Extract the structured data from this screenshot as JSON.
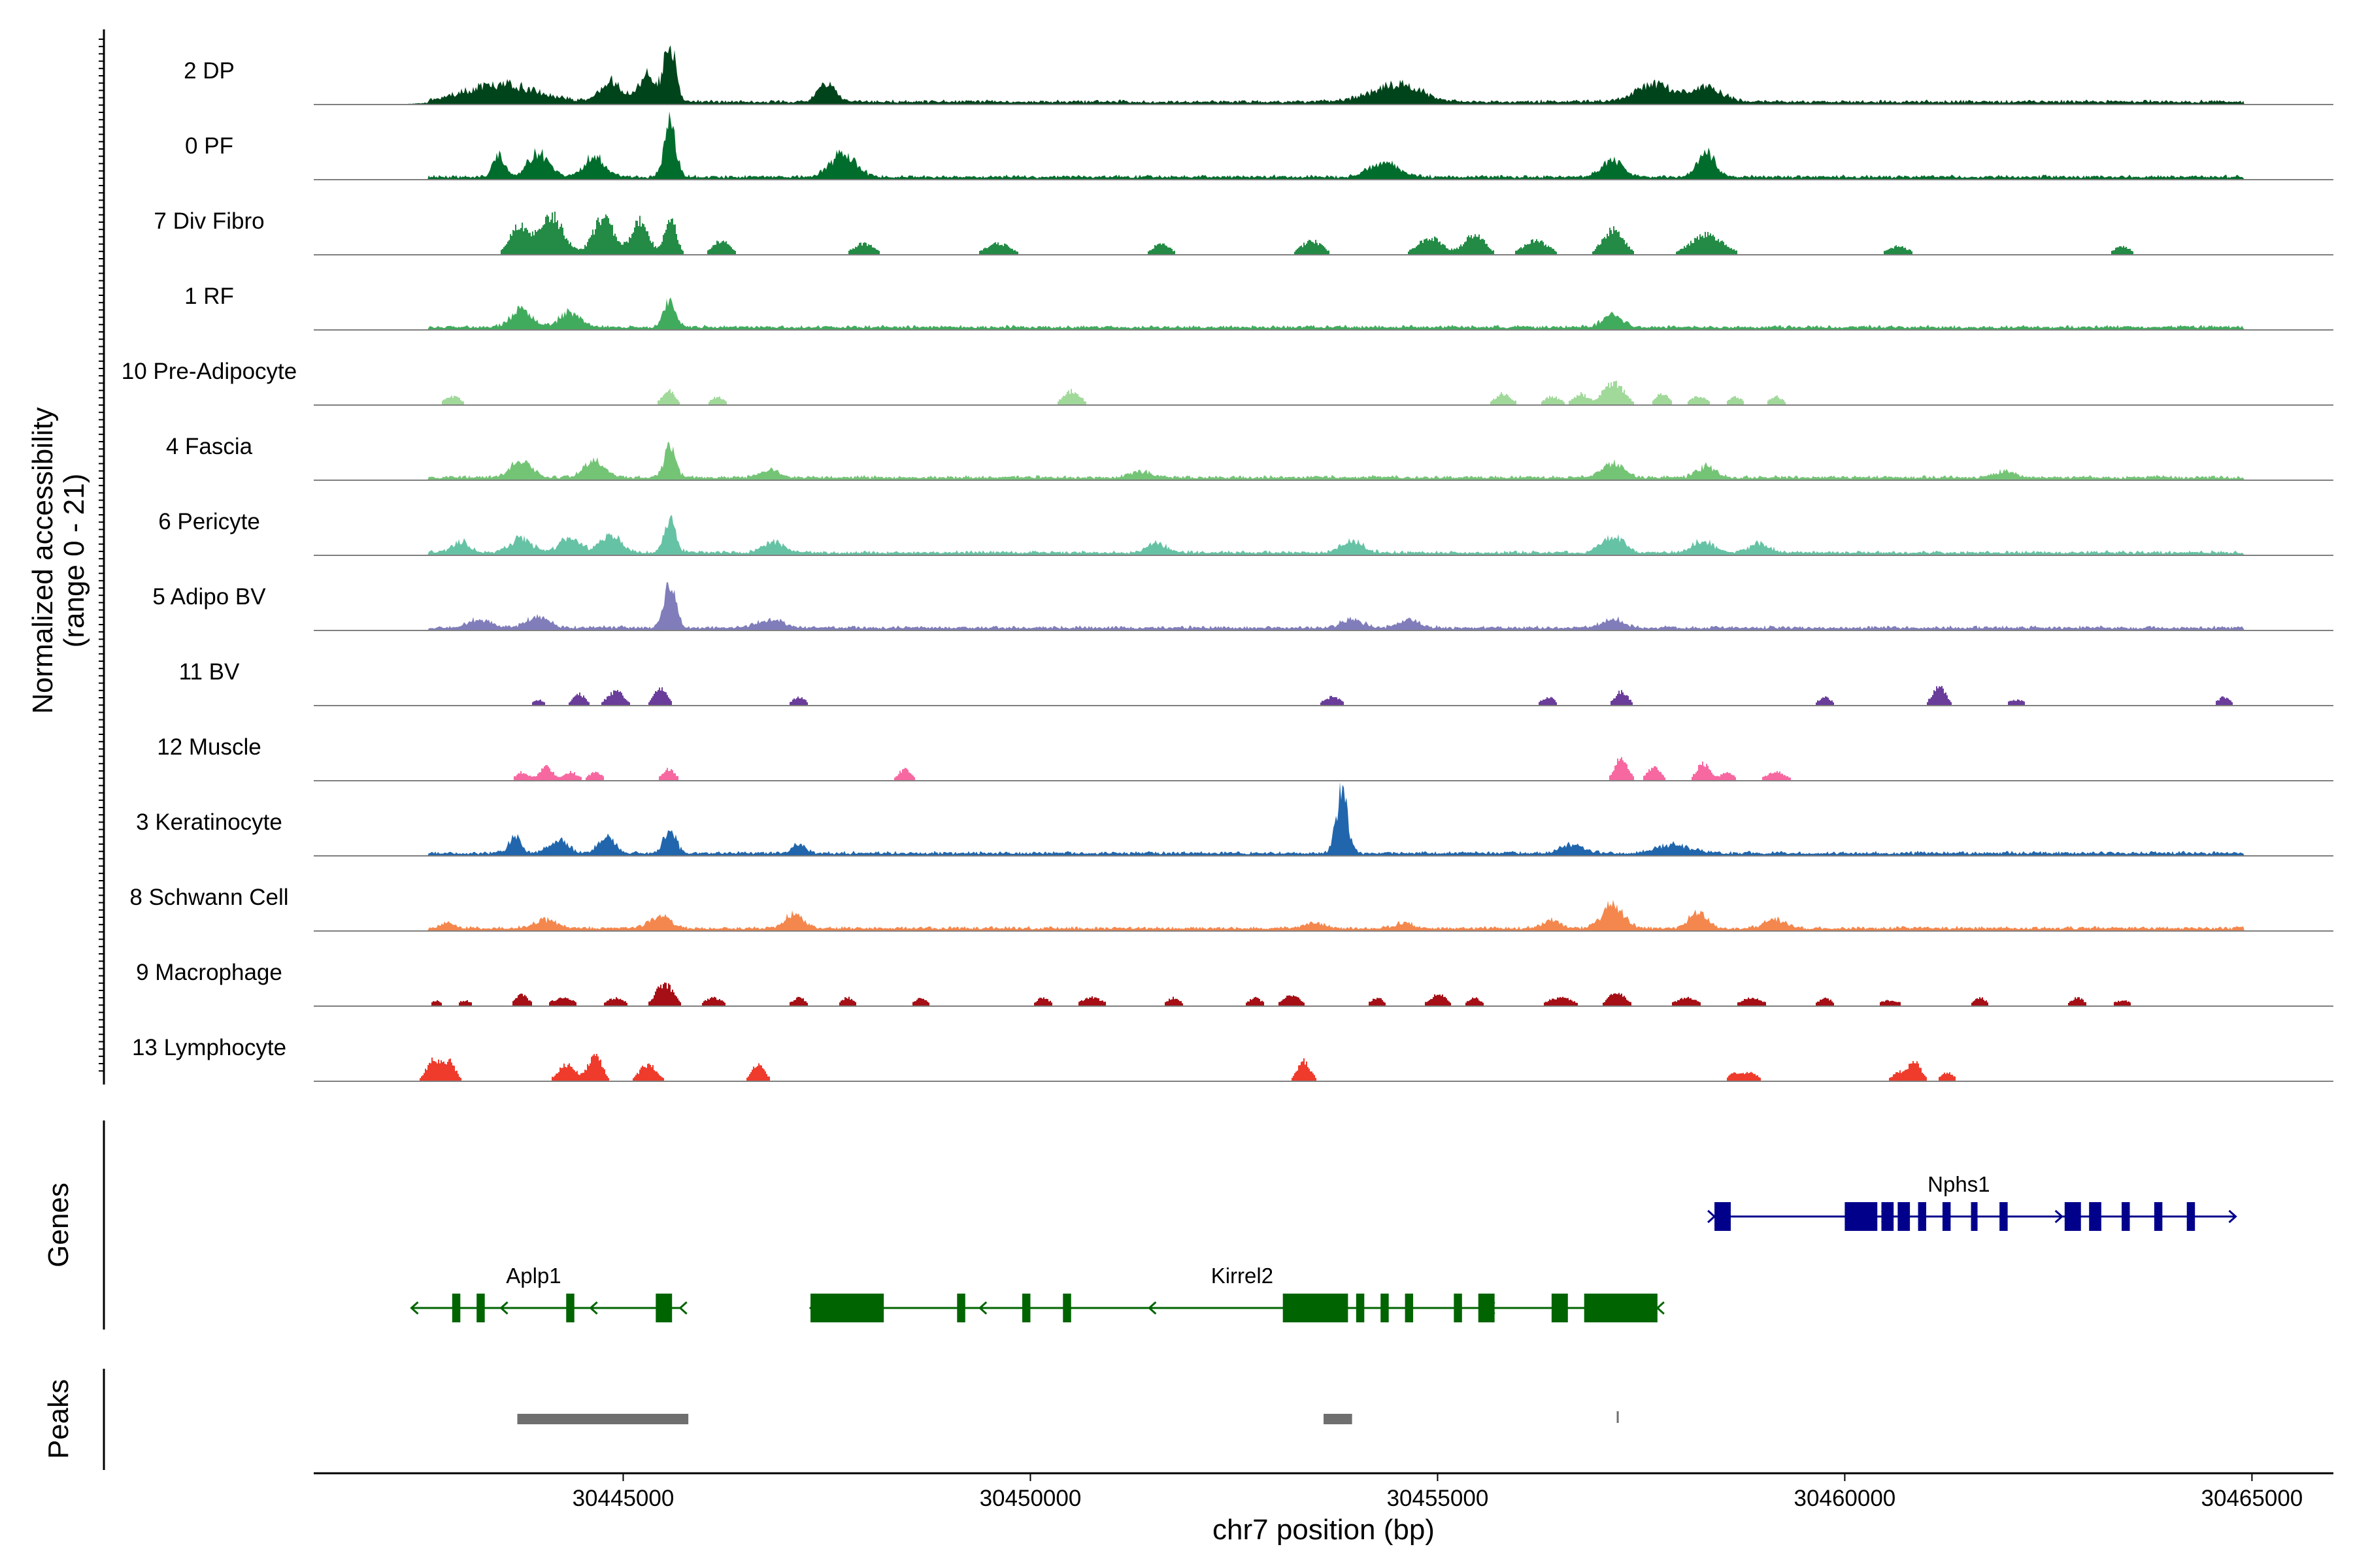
{
  "chart_data": {
    "type": "area",
    "ylabel_line1": "Normalized accessibility",
    "ylabel_line2": "(range 0 - 21)",
    "y_range": [
      0,
      21
    ],
    "genes_label": "Genes",
    "peaks_label": "Peaks",
    "xlabel": "chr7 position (bp)",
    "xlim": [
      30441200,
      30466000
    ],
    "x_ticks": [
      30445000,
      30450000,
      30455000,
      30460000,
      30465000
    ],
    "x_tick_labels": [
      "30445000",
      "30450000",
      "30455000",
      "30460000",
      "30465000"
    ],
    "tracks": [
      {
        "label": "2 DP",
        "color": "#00441b",
        "style": "dense",
        "peaks": [
          [
            30442700,
            30444300,
            6
          ],
          [
            30444700,
            30445000,
            7
          ],
          [
            30445200,
            30445400,
            10
          ],
          [
            30445550,
            30445600,
            21
          ],
          [
            30447600,
            30447400,
            6
          ],
          [
            30455000,
            30454000,
            6
          ],
          [
            30457300,
            30458000,
            6
          ],
          [
            30458600,
            30458000,
            5
          ]
        ]
      },
      {
        "label": "0 PF",
        "color": "#006d2c",
        "style": "dense",
        "peaks": [
          [
            30443450,
            30443500,
            8
          ],
          [
            30443800,
            30444100,
            8
          ],
          [
            30444500,
            30444800,
            7
          ],
          [
            30445550,
            30445600,
            18
          ],
          [
            30447900,
            30447500,
            8
          ],
          [
            30454600,
            30454100,
            5
          ],
          [
            30457300,
            30457000,
            6
          ],
          [
            30458400,
            30458200,
            9
          ]
        ]
      },
      {
        "label": "7 Div Fibro",
        "color": "#238b45",
        "style": "blocky",
        "peaks": [
          [
            30443600,
            30443800,
            10
          ],
          [
            30443900,
            30444300,
            14
          ],
          [
            30444600,
            30444900,
            13
          ],
          [
            30445100,
            30445300,
            12
          ],
          [
            30445550,
            30445600,
            14
          ],
          [
            30446300,
            30446100,
            5
          ],
          [
            30447800,
            30448100,
            4
          ],
          [
            30449400,
            30449800,
            4
          ],
          [
            30451500,
            30451700,
            4
          ],
          [
            30453300,
            30453600,
            5
          ],
          [
            30454700,
            30455100,
            6
          ],
          [
            30455300,
            30455600,
            7
          ],
          [
            30456000,
            30456400,
            5
          ],
          [
            30457300,
            30457000,
            9
          ],
          [
            30458000,
            30458600,
            7
          ],
          [
            30460500,
            30460800,
            3
          ],
          [
            30463300,
            30463500,
            3
          ]
        ]
      },
      {
        "label": "1 RF",
        "color": "#41ab5d",
        "style": "dense",
        "peaks": [
          [
            30443600,
            30443900,
            6
          ],
          [
            30444200,
            30444500,
            5
          ],
          [
            30445550,
            30445600,
            10
          ],
          [
            30457300,
            30457000,
            4
          ]
        ]
      },
      {
        "label": "10 Pre-Adipocyte",
        "color": "#a1d99b",
        "style": "blocky",
        "peaks": [
          [
            30442800,
            30443000,
            3
          ],
          [
            30445500,
            30445600,
            5
          ],
          [
            30446200,
            30446100,
            3
          ],
          [
            30450400,
            30450600,
            5
          ],
          [
            30455700,
            30455900,
            4
          ],
          [
            30456300,
            30456500,
            3
          ],
          [
            30456700,
            30456800,
            4
          ],
          [
            30457300,
            30457000,
            8
          ],
          [
            30457700,
            30457800,
            4
          ],
          [
            30458100,
            30458300,
            3
          ],
          [
            30458600,
            30458700,
            3
          ],
          [
            30459100,
            30459200,
            3
          ]
        ]
      },
      {
        "label": "4 Fascia",
        "color": "#74c476",
        "style": "dense",
        "peaks": [
          [
            30443600,
            30443900,
            6
          ],
          [
            30444500,
            30444800,
            6
          ],
          [
            30445550,
            30445600,
            11
          ],
          [
            30446700,
            30446900,
            3
          ],
          [
            30451200,
            30451500,
            2
          ],
          [
            30457300,
            30457000,
            5
          ],
          [
            30458400,
            30458200,
            4
          ],
          [
            30461800,
            30462100,
            2
          ]
        ]
      },
      {
        "label": "6 Pericyte",
        "color": "#66c2a4",
        "style": "dense",
        "peaks": [
          [
            30442900,
            30443100,
            4
          ],
          [
            30443600,
            30443900,
            5
          ],
          [
            30444200,
            30444500,
            5
          ],
          [
            30444700,
            30445000,
            6
          ],
          [
            30445550,
            30445600,
            12
          ],
          [
            30446700,
            30447000,
            4
          ],
          [
            30451400,
            30451700,
            3
          ],
          [
            30453800,
            30454100,
            4
          ],
          [
            30457300,
            30457000,
            6
          ],
          [
            30458100,
            30458400,
            4
          ],
          [
            30458800,
            30459100,
            3
          ]
        ]
      },
      {
        "label": "5 Adipo BV",
        "color": "#807dba",
        "style": "dense",
        "peaks": [
          [
            30443100,
            30443400,
            3
          ],
          [
            30443800,
            30444100,
            4
          ],
          [
            30445550,
            30445600,
            17
          ],
          [
            30446600,
            30447000,
            3
          ],
          [
            30453800,
            30454100,
            3
          ],
          [
            30454500,
            30454800,
            3
          ],
          [
            30457300,
            30457000,
            3
          ]
        ]
      },
      {
        "label": "11 BV",
        "color": "#6a3d9a",
        "style": "blocky",
        "peaks": [
          [
            30443900,
            30444000,
            2
          ],
          [
            30444400,
            30444500,
            4
          ],
          [
            30444800,
            30445000,
            5
          ],
          [
            30445400,
            30445500,
            6
          ],
          [
            30447100,
            30447200,
            3
          ],
          [
            30453600,
            30453800,
            3
          ],
          [
            30456300,
            30456400,
            3
          ],
          [
            30457200,
            30457300,
            5
          ],
          [
            30459700,
            30459800,
            3
          ],
          [
            30461100,
            30461200,
            7
          ],
          [
            30462000,
            30462200,
            2
          ],
          [
            30464600,
            30464700,
            3
          ]
        ]
      },
      {
        "label": "12 Muscle",
        "color": "#f768a1",
        "style": "blocky",
        "peaks": [
          [
            30443700,
            30443800,
            3
          ],
          [
            30444000,
            30444100,
            5
          ],
          [
            30444300,
            30444400,
            3
          ],
          [
            30444600,
            30444700,
            3
          ],
          [
            30445500,
            30445600,
            4
          ],
          [
            30448400,
            30448500,
            4
          ],
          [
            30457300,
            30457200,
            8
          ],
          [
            30457600,
            30457700,
            5
          ],
          [
            30458200,
            30458300,
            6
          ],
          [
            30458500,
            30458600,
            3
          ],
          [
            30459000,
            30459300,
            3
          ]
        ]
      },
      {
        "label": "3 Keratinocyte",
        "color": "#2166ac",
        "style": "dense",
        "peaks": [
          [
            30443650,
            30443700,
            6
          ],
          [
            30444100,
            30444300,
            5
          ],
          [
            30444700,
            30444900,
            5
          ],
          [
            30445550,
            30445600,
            9
          ],
          [
            30447100,
            30447200,
            3
          ],
          [
            30453800,
            30453850,
            21
          ],
          [
            30456500,
            30456800,
            3
          ],
          [
            30457600,
            30458200,
            3
          ]
        ]
      },
      {
        "label": "8 Schwann Cell",
        "color": "#f4874d",
        "style": "dense",
        "peaks": [
          [
            30442800,
            30442900,
            2
          ],
          [
            30443900,
            30444200,
            3
          ],
          [
            30445300,
            30445600,
            4
          ],
          [
            30447000,
            30447200,
            5
          ],
          [
            30453400,
            30453600,
            2
          ],
          [
            30454500,
            30454700,
            2
          ],
          [
            30456300,
            30456500,
            3
          ],
          [
            30457300,
            30457000,
            8
          ],
          [
            30458100,
            30458300,
            6
          ],
          [
            30459000,
            30459300,
            3
          ]
        ]
      },
      {
        "label": "9 Macrophage",
        "color": "#a50f15",
        "style": "blocky",
        "peaks": [
          [
            30442700,
            30442700,
            2
          ],
          [
            30443000,
            30443100,
            2
          ],
          [
            30443700,
            30443800,
            4
          ],
          [
            30444100,
            30444400,
            3
          ],
          [
            30444800,
            30445000,
            3
          ],
          [
            30445400,
            30445600,
            8
          ],
          [
            30446000,
            30446200,
            3
          ],
          [
            30447100,
            30447200,
            3
          ],
          [
            30447700,
            30447800,
            3
          ],
          [
            30448600,
            30448700,
            3
          ],
          [
            30450100,
            30450200,
            3
          ],
          [
            30450600,
            30450900,
            3
          ],
          [
            30451700,
            30451800,
            3
          ],
          [
            30452700,
            30452800,
            3
          ],
          [
            30453100,
            30453300,
            4
          ],
          [
            30454200,
            30454300,
            3
          ],
          [
            30454900,
            30455100,
            4
          ],
          [
            30455400,
            30455500,
            3
          ],
          [
            30456300,
            30456700,
            3
          ],
          [
            30457300,
            30457100,
            5
          ],
          [
            30457900,
            30458200,
            3
          ],
          [
            30458700,
            30459000,
            3
          ],
          [
            30459700,
            30459800,
            3
          ],
          [
            30460400,
            30460700,
            2
          ],
          [
            30461600,
            30461700,
            3
          ],
          [
            30462800,
            30462900,
            3
          ],
          [
            30463300,
            30463500,
            2
          ]
        ]
      },
      {
        "label": "13 Lymphocyte",
        "color": "#ef3b2c",
        "style": "blocky",
        "peaks": [
          [
            30442600,
            30442700,
            7
          ],
          [
            30442800,
            30442900,
            7
          ],
          [
            30444200,
            30444400,
            6
          ],
          [
            30444600,
            30444700,
            10
          ],
          [
            30445200,
            30445400,
            6
          ],
          [
            30446600,
            30446700,
            6
          ],
          [
            30453300,
            30453400,
            7
          ],
          [
            30458600,
            30458700,
            3
          ],
          [
            30458800,
            30458900,
            3
          ],
          [
            30460600,
            30460700,
            3
          ],
          [
            30460800,
            30460900,
            7
          ],
          [
            30461200,
            30461300,
            3
          ]
        ]
      }
    ],
    "genes": [
      {
        "name": "Nphs1",
        "strand": "+",
        "color": "#00008b",
        "row": 0,
        "start": 30458400,
        "end": 30464800,
        "label_at": 30461400,
        "exons": [
          [
            30458400,
            30458600
          ],
          [
            30460000,
            30460400
          ],
          [
            30460450,
            30460600
          ],
          [
            30460650,
            30460800
          ],
          [
            30460900,
            30461000
          ],
          [
            30461200,
            30461300
          ],
          [
            30461550,
            30461600
          ],
          [
            30461900,
            30462000
          ],
          [
            30462700,
            30462900
          ],
          [
            30463000,
            30463150
          ],
          [
            30463400,
            30463500
          ],
          [
            30463800,
            30463900
          ],
          [
            30464200,
            30464300
          ]
        ]
      },
      {
        "name": "Aplp1",
        "strand": "-",
        "color": "#006400",
        "row": 1,
        "start": 30442400,
        "end": 30445700,
        "label_at": 30443900,
        "exons": [
          [
            30442900,
            30443000
          ],
          [
            30443200,
            30443300
          ],
          [
            30444300,
            30444400
          ],
          [
            30445400,
            30445600
          ]
        ]
      },
      {
        "name": "Kirrel2",
        "strand": "-",
        "color": "#006400",
        "row": 1,
        "start": 30447300,
        "end": 30457700,
        "label_at": 30452600,
        "exons": [
          [
            30447300,
            30448200
          ],
          [
            30449100,
            30449200
          ],
          [
            30449900,
            30450000
          ],
          [
            30450400,
            30450500
          ],
          [
            30453100,
            30453900
          ],
          [
            30454000,
            30454100
          ],
          [
            30454300,
            30454400
          ],
          [
            30454600,
            30454700
          ],
          [
            30455200,
            30455300
          ],
          [
            30455500,
            30455700
          ],
          [
            30456400,
            30456600
          ],
          [
            30456800,
            30457700
          ]
        ]
      }
    ],
    "peak_regions": [
      [
        30443700,
        30445800
      ],
      [
        30453600,
        30453950
      ],
      [
        30457200,
        30457220
      ]
    ]
  }
}
